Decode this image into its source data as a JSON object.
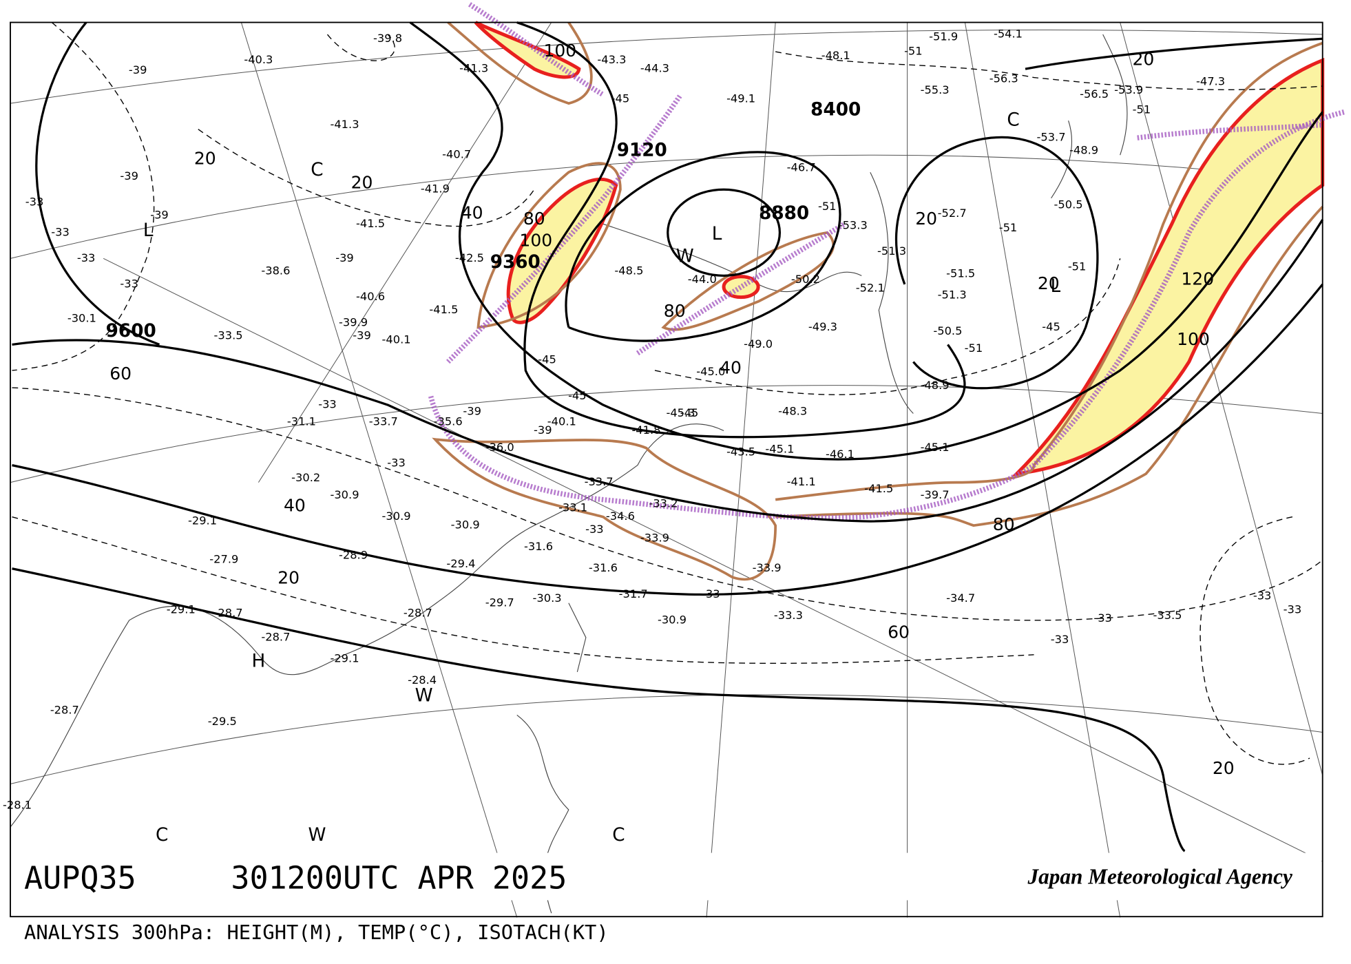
{
  "header": {
    "code": "AUPQ35",
    "time": "301200UTC APR 2025",
    "agency": "Japan Meteorological Agency",
    "description": "ANALYSIS 300hPa: HEIGHT(M), TEMP(°C), ISOTACH(KT)"
  },
  "map": {
    "heights": [
      "9600",
      "9360",
      "9120",
      "8880",
      "8400"
    ],
    "isotachs": [
      "20",
      "20",
      "40",
      "100",
      "80",
      "100",
      "80",
      "40",
      "60",
      "40",
      "20",
      "60",
      "80",
      "100",
      "120",
      "20",
      "20",
      "20",
      "20"
    ],
    "systems": [
      "L",
      "C",
      "L",
      "W",
      "H",
      "W",
      "C",
      "L",
      "C",
      "W",
      "C"
    ],
    "temperatures": [
      "-39.8",
      "-40.3",
      "-41.3",
      "-41.3",
      "-40.7",
      "-41.9",
      "-41.5",
      "-38.6",
      "-40.6",
      "-39.9",
      "-40.1",
      "-41.5",
      "-42.5",
      "-30.1",
      "-33.5",
      "-31.1",
      "-33.7",
      "-35.6",
      "-36.0",
      "-30.2",
      "-30.9",
      "-30.9",
      "-30.9",
      "-29.1",
      "-27.9",
      "-28.9",
      "-29.4",
      "-29.7",
      "-30.3",
      "-31.6",
      "-31.6",
      "-31.7",
      "-30.9",
      "-33.3",
      "-28.7",
      "-29.1",
      "-28.7",
      "-28.7",
      "-29.1",
      "-28.4",
      "-28.7",
      "-29.5",
      "-28.1",
      "-34.6",
      "-33.9",
      "-33.1",
      "-33.7",
      "-33.2",
      "-33.9",
      "-34.7",
      "-33.5",
      "-40.1",
      "-41.8",
      "-45.3",
      "-43.5",
      "-45.1",
      "-46.1",
      "-41.1",
      "-41.5",
      "-39.7",
      "-45.1",
      "-48.3",
      "-45.0",
      "-49.0",
      "-49.3",
      "-52.1",
      "-50.2",
      "-51.3",
      "-53.3",
      "-52.7",
      "-51.5",
      "-51.3",
      "-50.5",
      "-48.9",
      "-50.5",
      "-48.9",
      "-53.7",
      "-54.1",
      "-51.9",
      "-55.3",
      "-56.3",
      "-56.5",
      "-53.9",
      "-47.3",
      "-48.5",
      "-44.0",
      "-46.7",
      "-49.1",
      "-48.1",
      "-44.3",
      "-43.3"
    ],
    "small_temps": [
      "-39",
      "-39",
      "-39",
      "-33",
      "-33",
      "-33",
      "-33",
      "-39",
      "-39",
      "-45",
      "-45",
      "-45",
      "-51",
      "-51",
      "-51",
      "-51",
      "-45",
      "-39",
      "-39",
      "-33",
      "-33",
      "-33",
      "-33",
      "-33",
      "-33",
      "-33",
      "-33",
      "-45",
      "-51",
      "-51"
    ]
  }
}
